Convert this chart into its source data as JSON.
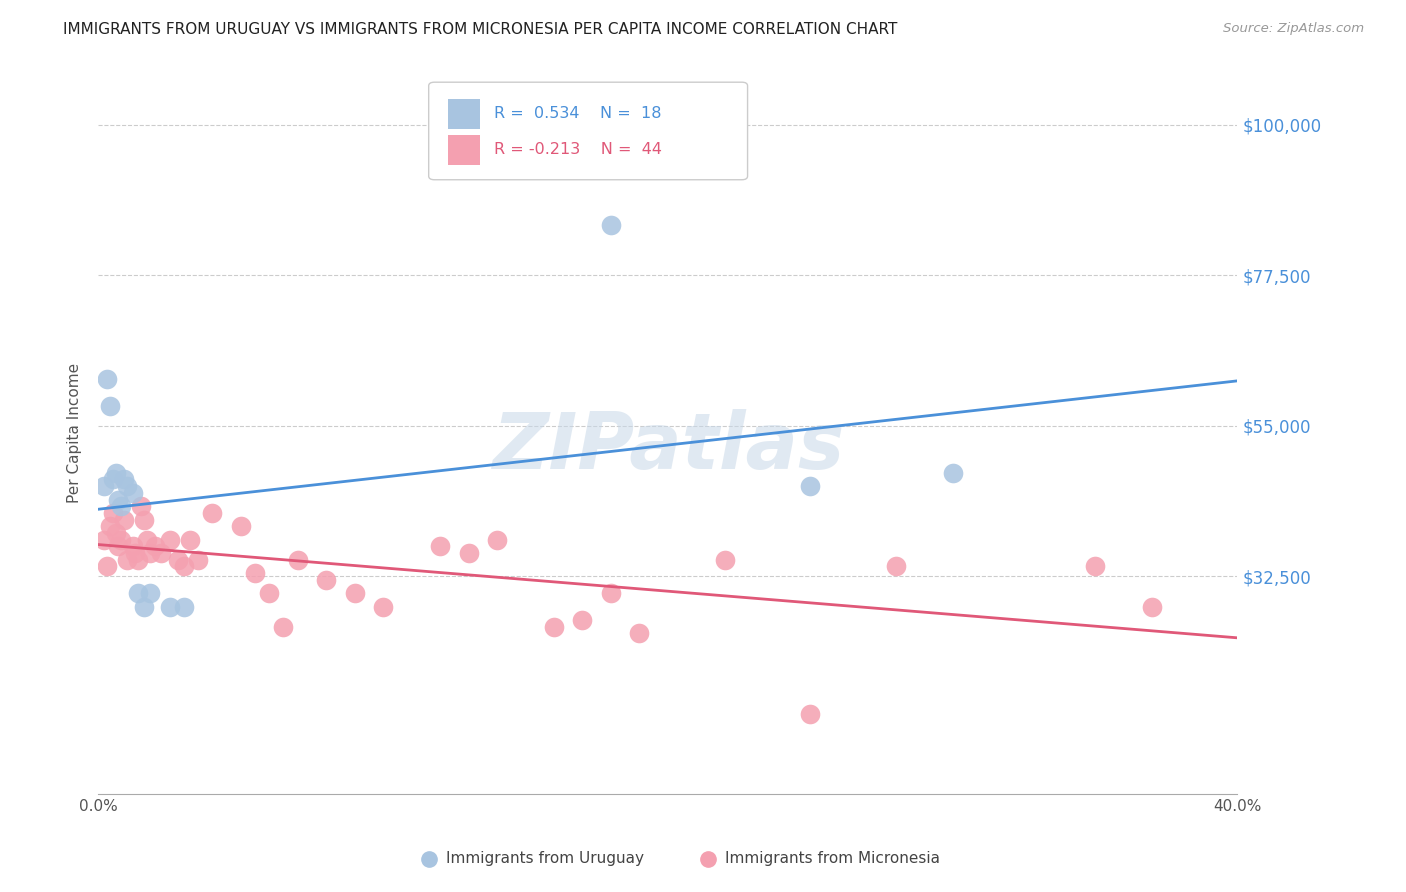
{
  "title": "IMMIGRANTS FROM URUGUAY VS IMMIGRANTS FROM MICRONESIA PER CAPITA INCOME CORRELATION CHART",
  "source": "Source: ZipAtlas.com",
  "ylabel": "Per Capita Income",
  "yticks": [
    0,
    32500,
    55000,
    77500,
    100000
  ],
  "ytick_labels": [
    "",
    "$32,500",
    "$55,000",
    "$77,500",
    "$100,000"
  ],
  "xmin": 0.0,
  "xmax": 0.4,
  "ymin": 0,
  "ymax": 108000,
  "uruguay_R": 0.534,
  "uruguay_N": 18,
  "micronesia_R": -0.213,
  "micronesia_N": 44,
  "uruguay_color": "#a8c4e0",
  "micronesia_color": "#f4a0b0",
  "uruguay_line_color": "#4a90d9",
  "micronesia_line_color": "#e05878",
  "watermark_color": "#c8d8e8",
  "watermark": "ZIPatlas",
  "grid_color": "#cccccc",
  "uruguay_x": [
    0.002,
    0.003,
    0.004,
    0.005,
    0.006,
    0.007,
    0.008,
    0.009,
    0.01,
    0.012,
    0.014,
    0.016,
    0.018,
    0.025,
    0.03,
    0.25,
    0.3,
    0.18
  ],
  "uruguay_y": [
    46000,
    62000,
    58000,
    47000,
    48000,
    44000,
    43000,
    47000,
    46000,
    45000,
    30000,
    28000,
    30000,
    28000,
    28000,
    46000,
    48000,
    85000
  ],
  "micronesia_x": [
    0.002,
    0.003,
    0.004,
    0.005,
    0.006,
    0.007,
    0.008,
    0.009,
    0.01,
    0.012,
    0.013,
    0.014,
    0.015,
    0.016,
    0.017,
    0.018,
    0.02,
    0.022,
    0.025,
    0.028,
    0.03,
    0.032,
    0.035,
    0.04,
    0.05,
    0.055,
    0.06,
    0.065,
    0.07,
    0.08,
    0.09,
    0.1,
    0.12,
    0.13,
    0.14,
    0.16,
    0.17,
    0.18,
    0.19,
    0.22,
    0.25,
    0.28,
    0.35,
    0.37
  ],
  "micronesia_y": [
    38000,
    34000,
    40000,
    42000,
    39000,
    37000,
    38000,
    41000,
    35000,
    37000,
    36000,
    35000,
    43000,
    41000,
    38000,
    36000,
    37000,
    36000,
    38000,
    35000,
    34000,
    38000,
    35000,
    42000,
    40000,
    33000,
    30000,
    25000,
    35000,
    32000,
    30000,
    28000,
    37000,
    36000,
    38000,
    25000,
    26000,
    30000,
    24000,
    35000,
    12000,
    34000,
    34000,
    28000
  ]
}
